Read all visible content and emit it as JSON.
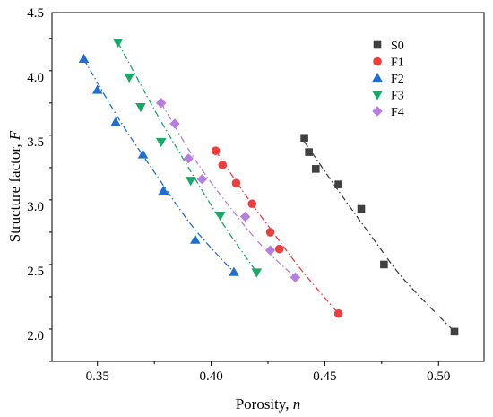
{
  "chart_data": {
    "type": "scatter",
    "xlabel": "Porosity, ",
    "xlabel_var": "n",
    "ylabel": "Structure factor, ",
    "ylabel_var": "F",
    "xlim": [
      0.33,
      0.52
    ],
    "ylim": [
      1.8,
      4.5
    ],
    "xticks": [
      0.35,
      0.4,
      0.45,
      0.5
    ],
    "xtick_labels": [
      "0.35",
      "0.40",
      "0.45",
      "0.50"
    ],
    "yticks": [
      2.0,
      2.5,
      3.0,
      3.5,
      4.0,
      4.5
    ],
    "ytick_labels": [
      "2.0",
      "2.5",
      "3.0",
      "3.5",
      "4.0",
      "4.5"
    ],
    "grid": false,
    "legend_position": "top-right",
    "series": [
      {
        "name": "S0",
        "marker": "square",
        "color": "#404040",
        "points": [
          [
            0.441,
            3.53
          ],
          [
            0.443,
            3.42
          ],
          [
            0.446,
            3.29
          ],
          [
            0.456,
            3.17
          ],
          [
            0.466,
            2.98
          ],
          [
            0.476,
            2.55
          ],
          [
            0.507,
            2.03
          ]
        ],
        "fit": [
          [
            0.441,
            3.5
          ],
          [
            0.456,
            3.12
          ],
          [
            0.47,
            2.78
          ],
          [
            0.485,
            2.43
          ],
          [
            0.507,
            2.03
          ]
        ]
      },
      {
        "name": "F1",
        "marker": "circle",
        "color": "#ee3d3d",
        "points": [
          [
            0.402,
            3.43
          ],
          [
            0.405,
            3.32
          ],
          [
            0.411,
            3.18
          ],
          [
            0.418,
            3.02
          ],
          [
            0.426,
            2.8
          ],
          [
            0.43,
            2.67
          ],
          [
            0.456,
            2.17
          ]
        ],
        "fit": [
          [
            0.402,
            3.43
          ],
          [
            0.415,
            3.09
          ],
          [
            0.428,
            2.78
          ],
          [
            0.44,
            2.5
          ],
          [
            0.456,
            2.17
          ]
        ]
      },
      {
        "name": "F2",
        "marker": "triangle-up",
        "color": "#1f6fd1",
        "points": [
          [
            0.344,
            4.14
          ],
          [
            0.35,
            3.9
          ],
          [
            0.358,
            3.65
          ],
          [
            0.37,
            3.4
          ],
          [
            0.379,
            3.12
          ],
          [
            0.393,
            2.74
          ],
          [
            0.41,
            2.49
          ]
        ],
        "fit": [
          [
            0.344,
            4.14
          ],
          [
            0.36,
            3.66
          ],
          [
            0.376,
            3.24
          ],
          [
            0.392,
            2.84
          ],
          [
            0.41,
            2.49
          ]
        ]
      },
      {
        "name": "F3",
        "marker": "triangle-down",
        "color": "#1aa866",
        "points": [
          [
            0.359,
            4.27
          ],
          [
            0.364,
            4.0
          ],
          [
            0.369,
            3.77
          ],
          [
            0.378,
            3.5
          ],
          [
            0.391,
            3.2
          ],
          [
            0.404,
            2.93
          ],
          [
            0.42,
            2.49
          ]
        ],
        "fit": [
          [
            0.359,
            4.27
          ],
          [
            0.375,
            3.75
          ],
          [
            0.39,
            3.3
          ],
          [
            0.405,
            2.87
          ],
          [
            0.42,
            2.49
          ]
        ]
      },
      {
        "name": "F4",
        "marker": "diamond",
        "color": "#b57ee0",
        "points": [
          [
            0.378,
            3.8
          ],
          [
            0.384,
            3.64
          ],
          [
            0.39,
            3.37
          ],
          [
            0.396,
            3.21
          ],
          [
            0.415,
            2.92
          ],
          [
            0.426,
            2.66
          ],
          [
            0.437,
            2.45
          ]
        ],
        "fit": [
          [
            0.378,
            3.8
          ],
          [
            0.393,
            3.36
          ],
          [
            0.408,
            3.0
          ],
          [
            0.422,
            2.7
          ],
          [
            0.437,
            2.45
          ]
        ]
      }
    ]
  }
}
